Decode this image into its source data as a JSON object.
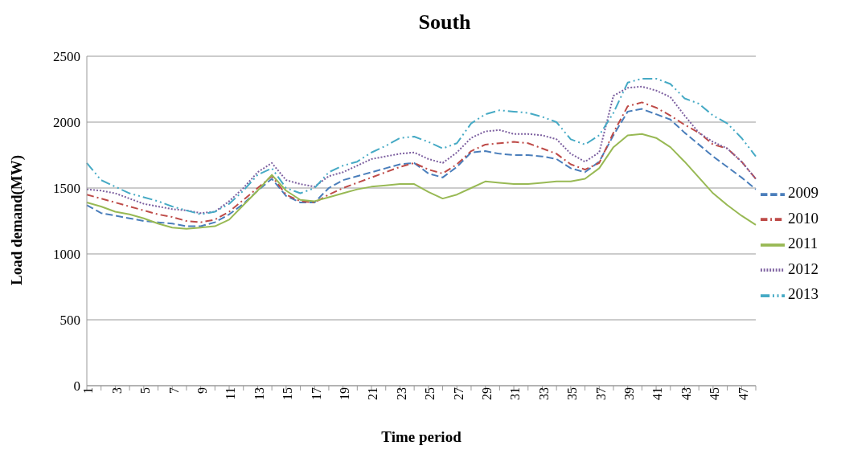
{
  "chart_data": {
    "type": "line",
    "title": "South",
    "xlabel": "Time period",
    "ylabel": "Load demand(MW)",
    "categories": [
      "1",
      null,
      "3",
      null,
      "5",
      null,
      "7",
      null,
      "9",
      null,
      "11",
      null,
      "13",
      null,
      "15",
      null,
      "17",
      null,
      "19",
      null,
      "21",
      null,
      "23",
      null,
      "25",
      null,
      "27",
      null,
      "29",
      null,
      "31",
      null,
      "33",
      null,
      "35",
      null,
      "37",
      null,
      "39",
      null,
      "41",
      null,
      "43",
      null,
      "45",
      null,
      "47",
      null
    ],
    "series": [
      {
        "name": "2009",
        "color": "#4a7ebb",
        "line_style": "dashed",
        "values": [
          1370,
          1310,
          1290,
          1270,
          1250,
          1240,
          1230,
          1210,
          1210,
          1240,
          1300,
          1380,
          1480,
          1570,
          1440,
          1390,
          1390,
          1500,
          1560,
          1590,
          1620,
          1650,
          1680,
          1690,
          1610,
          1580,
          1660,
          1770,
          1780,
          1760,
          1750,
          1750,
          1740,
          1720,
          1650,
          1620,
          1700,
          1900,
          2080,
          2100,
          2060,
          2020,
          1920,
          1830,
          1740,
          1660,
          1580,
          1490
        ]
      },
      {
        "name": "2010",
        "color": "#be4b48",
        "line_style": "dashdot",
        "values": [
          1450,
          1420,
          1390,
          1360,
          1330,
          1300,
          1280,
          1250,
          1240,
          1260,
          1320,
          1410,
          1500,
          1590,
          1450,
          1400,
          1390,
          1450,
          1500,
          1540,
          1580,
          1620,
          1660,
          1690,
          1640,
          1610,
          1680,
          1780,
          1830,
          1840,
          1850,
          1840,
          1800,
          1760,
          1680,
          1640,
          1690,
          1920,
          2120,
          2150,
          2110,
          2050,
          1980,
          1920,
          1830,
          1800,
          1700,
          1570
        ]
      },
      {
        "name": "2011",
        "color": "#98b954",
        "line_style": "solid",
        "values": [
          1390,
          1360,
          1320,
          1300,
          1270,
          1230,
          1200,
          1190,
          1200,
          1210,
          1260,
          1370,
          1480,
          1600,
          1480,
          1410,
          1400,
          1430,
          1460,
          1490,
          1510,
          1520,
          1530,
          1530,
          1470,
          1420,
          1450,
          1500,
          1550,
          1540,
          1530,
          1530,
          1540,
          1550,
          1550,
          1570,
          1650,
          1810,
          1900,
          1910,
          1880,
          1810,
          1700,
          1580,
          1460,
          1370,
          1290,
          1220
        ]
      },
      {
        "name": "2012",
        "color": "#7d60a0",
        "line_style": "dotted",
        "values": [
          1490,
          1480,
          1460,
          1420,
          1380,
          1360,
          1340,
          1330,
          1310,
          1320,
          1400,
          1500,
          1620,
          1690,
          1560,
          1530,
          1510,
          1590,
          1620,
          1670,
          1720,
          1740,
          1760,
          1770,
          1720,
          1690,
          1770,
          1880,
          1930,
          1940,
          1910,
          1910,
          1900,
          1870,
          1760,
          1700,
          1770,
          2200,
          2260,
          2270,
          2240,
          2190,
          2050,
          1920,
          1850,
          1800,
          1700,
          1570
        ]
      },
      {
        "name": "2013",
        "color": "#46aac5",
        "line_style": "dashdotdot",
        "values": [
          1690,
          1560,
          1510,
          1460,
          1430,
          1400,
          1360,
          1330,
          1300,
          1320,
          1380,
          1480,
          1600,
          1650,
          1500,
          1460,
          1500,
          1620,
          1670,
          1700,
          1770,
          1820,
          1880,
          1890,
          1850,
          1800,
          1840,
          1990,
          2060,
          2090,
          2080,
          2070,
          2040,
          2000,
          1870,
          1830,
          1900,
          2070,
          2300,
          2330,
          2330,
          2290,
          2180,
          2140,
          2050,
          1990,
          1880,
          1740
        ]
      }
    ],
    "ylim": [
      0,
      2500
    ],
    "yticks": [
      0,
      500,
      1000,
      1500,
      2000,
      2500
    ],
    "grid": "y",
    "legend": "right",
    "marker": "none"
  }
}
